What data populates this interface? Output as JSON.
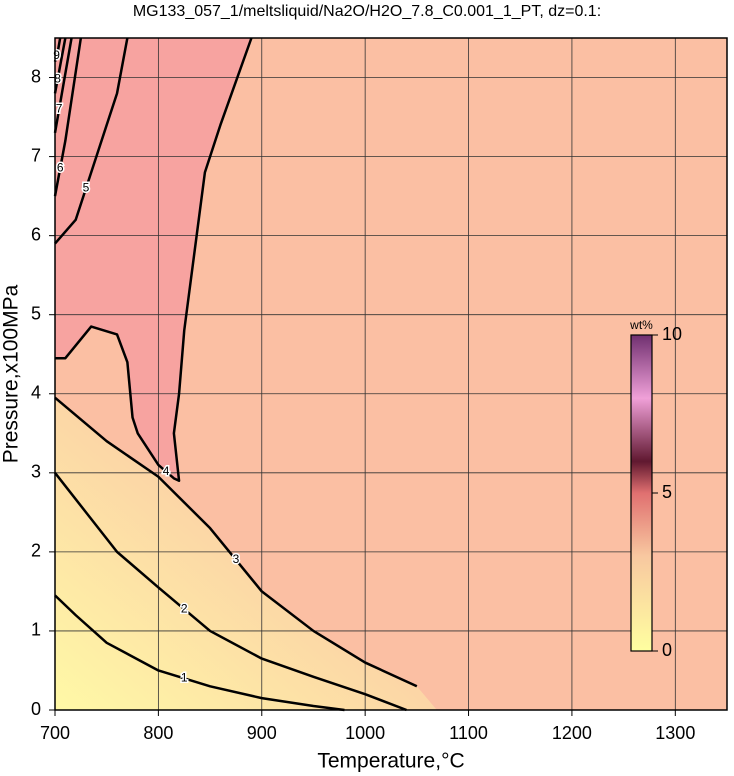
{
  "chart_data": {
    "type": "contour",
    "title": "MG133_057_1/meltsliquid/Na2O/H2O_7.8_C0.001_1_PT, dz=0.1:",
    "x_label": "Temperature,°C",
    "y_label": "Pressure,x100MPa",
    "xlim": [
      700,
      1350
    ],
    "ylim": [
      0,
      8.5
    ],
    "xticks": [
      700,
      800,
      900,
      1000,
      1100,
      1200,
      1300
    ],
    "yticks": [
      0,
      1,
      2,
      3,
      4,
      5,
      6,
      7,
      8
    ],
    "grid": true,
    "contours": [
      {
        "level": 1,
        "x": [
          700,
          720,
          750,
          800,
          850,
          900,
          950,
          980
        ],
        "y": [
          1.45,
          1.2,
          0.85,
          0.5,
          0.3,
          0.15,
          0.05,
          0
        ]
      },
      {
        "level": 2,
        "x": [
          700,
          730,
          760,
          800,
          850,
          900,
          950,
          1000,
          1040
        ],
        "y": [
          3.0,
          2.5,
          2.0,
          1.55,
          1.0,
          0.65,
          0.42,
          0.2,
          0
        ]
      },
      {
        "level": 3,
        "x": [
          700,
          750,
          800,
          850,
          900,
          950,
          1000,
          1050
        ],
        "y": [
          3.95,
          3.4,
          2.95,
          2.3,
          1.5,
          1.0,
          0.6,
          0.3
        ]
      },
      {
        "level": 4,
        "x": [
          700,
          710,
          735,
          760,
          770,
          775,
          780,
          800,
          815,
          820,
          815,
          820,
          825,
          845,
          860,
          890
        ],
        "y": [
          4.45,
          4.45,
          4.85,
          4.75,
          4.4,
          3.7,
          3.5,
          3.1,
          2.93,
          2.9,
          3.5,
          4.0,
          4.8,
          6.8,
          7.4,
          8.5
        ]
      },
      {
        "level": 5,
        "x": [
          700,
          720,
          740,
          760,
          770
        ],
        "y": [
          5.9,
          6.2,
          7.0,
          7.8,
          8.5
        ]
      },
      {
        "level": 6,
        "x": [
          700,
          710,
          725
        ],
        "y": [
          6.5,
          7.2,
          8.5
        ]
      },
      {
        "level": 7,
        "x": [
          700,
          708,
          716
        ],
        "y": [
          7.3,
          7.9,
          8.5
        ]
      },
      {
        "level": 8,
        "x": [
          700,
          705,
          710
        ],
        "y": [
          7.8,
          8.15,
          8.5
        ]
      },
      {
        "level": 9,
        "x": [
          700,
          703,
          705
        ],
        "y": [
          8.2,
          8.35,
          8.5
        ]
      }
    ],
    "colorbar": {
      "label": "wt%",
      "lim": [
        0,
        10
      ],
      "ticks": [
        0,
        5,
        10
      ]
    }
  }
}
